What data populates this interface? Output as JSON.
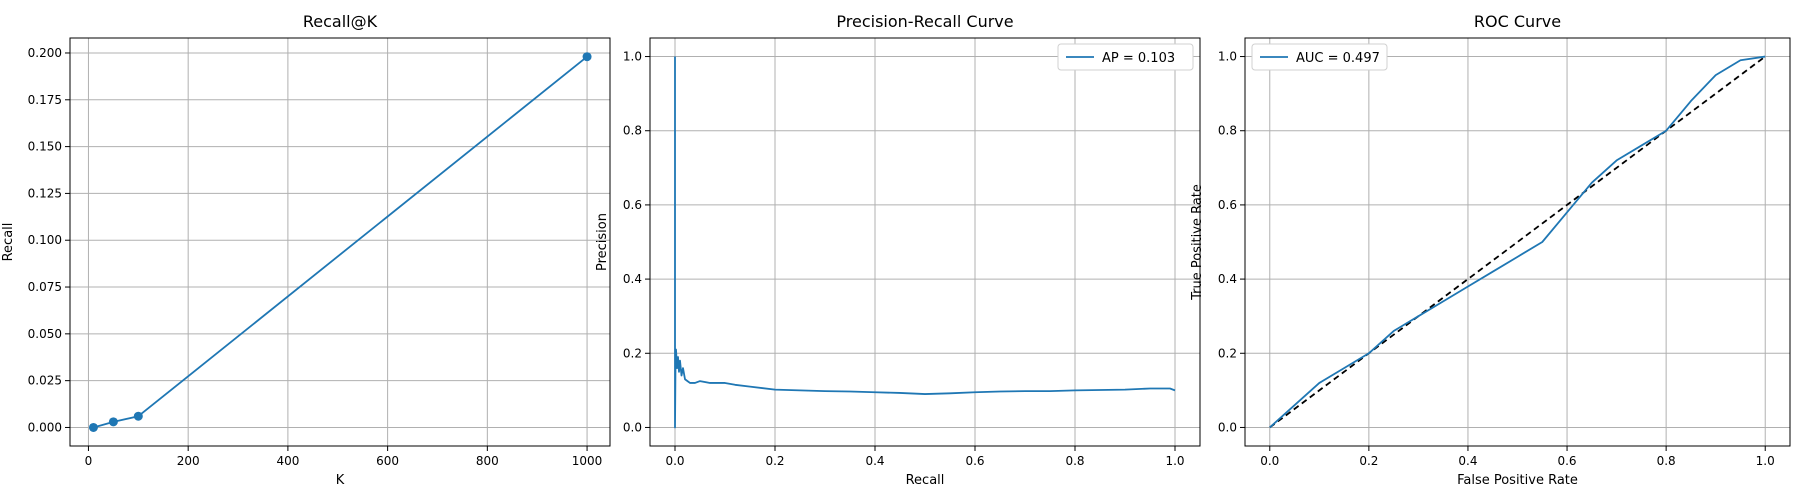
{
  "colors": {
    "series": "#1f77b4",
    "grid": "#b0b0b0",
    "diagonal": "#000000"
  },
  "chart_data": [
    {
      "type": "line",
      "title": "Recall@K",
      "xlabel": "K",
      "ylabel": "Recall",
      "xlim": [
        -37,
        1046
      ],
      "ylim": [
        -0.0099,
        0.208
      ],
      "xticks": [
        0,
        200,
        400,
        600,
        800,
        1000
      ],
      "xtick_labels": [
        "0",
        "200",
        "400",
        "600",
        "800",
        "1000"
      ],
      "yticks": [
        0,
        0.025,
        0.05,
        0.075,
        0.1,
        0.125,
        0.15,
        0.175,
        0.2
      ],
      "ytick_labels": [
        "0.000",
        "0.025",
        "0.050",
        "0.075",
        "0.100",
        "0.125",
        "0.150",
        "0.175",
        "0.200"
      ],
      "grid": true,
      "markers": true,
      "series": [
        {
          "x": [
            10,
            50,
            100,
            1000
          ],
          "y": [
            0.0,
            0.003,
            0.006,
            0.198
          ]
        }
      ]
    },
    {
      "type": "line",
      "title": "Precision-Recall Curve",
      "xlabel": "Recall",
      "ylabel": "Precision",
      "xlim": [
        -0.05,
        1.05
      ],
      "ylim": [
        -0.05,
        1.05
      ],
      "xticks": [
        0,
        0.2,
        0.4,
        0.6,
        0.8,
        1.0
      ],
      "xtick_labels": [
        "0.0",
        "0.2",
        "0.4",
        "0.6",
        "0.8",
        "1.0"
      ],
      "yticks": [
        0,
        0.2,
        0.4,
        0.6,
        0.8,
        1.0
      ],
      "ytick_labels": [
        "0.0",
        "0.2",
        "0.4",
        "0.6",
        "0.8",
        "1.0"
      ],
      "grid": true,
      "legend_position": "top-right",
      "series": [
        {
          "name": "AP = 0.103",
          "x": [
            0.0,
            0.0,
            0.001,
            0.002,
            0.004,
            0.006,
            0.008,
            0.01,
            0.013,
            0.016,
            0.02,
            0.025,
            0.03,
            0.04,
            0.05,
            0.07,
            0.1,
            0.12,
            0.15,
            0.2,
            0.25,
            0.3,
            0.35,
            0.4,
            0.45,
            0.5,
            0.55,
            0.6,
            0.65,
            0.7,
            0.75,
            0.8,
            0.85,
            0.9,
            0.95,
            0.99,
            1.0
          ],
          "y": [
            1.0,
            0.0,
            0.17,
            0.21,
            0.16,
            0.19,
            0.15,
            0.18,
            0.14,
            0.16,
            0.13,
            0.125,
            0.12,
            0.12,
            0.125,
            0.12,
            0.12,
            0.115,
            0.11,
            0.102,
            0.1,
            0.098,
            0.097,
            0.095,
            0.093,
            0.09,
            0.092,
            0.095,
            0.097,
            0.098,
            0.098,
            0.1,
            0.101,
            0.102,
            0.105,
            0.105,
            0.1
          ]
        }
      ]
    },
    {
      "type": "line",
      "title": "ROC Curve",
      "xlabel": "False Positive Rate",
      "ylabel": "True Positive Rate",
      "xlim": [
        -0.05,
        1.05
      ],
      "ylim": [
        -0.05,
        1.05
      ],
      "xticks": [
        0,
        0.2,
        0.4,
        0.6,
        0.8,
        1.0
      ],
      "xtick_labels": [
        "0.0",
        "0.2",
        "0.4",
        "0.6",
        "0.8",
        "1.0"
      ],
      "yticks": [
        0,
        0.2,
        0.4,
        0.6,
        0.8,
        1.0
      ],
      "ytick_labels": [
        "0.0",
        "0.2",
        "0.4",
        "0.6",
        "0.8",
        "1.0"
      ],
      "grid": true,
      "legend_position": "top-left",
      "series": [
        {
          "name": "AUC = 0.497",
          "x": [
            0.0,
            0.05,
            0.1,
            0.15,
            0.2,
            0.25,
            0.3,
            0.35,
            0.4,
            0.45,
            0.5,
            0.55,
            0.6,
            0.65,
            0.7,
            0.75,
            0.8,
            0.85,
            0.9,
            0.95,
            1.0
          ],
          "y": [
            0.0,
            0.06,
            0.12,
            0.16,
            0.2,
            0.26,
            0.3,
            0.34,
            0.38,
            0.42,
            0.46,
            0.5,
            0.58,
            0.66,
            0.72,
            0.76,
            0.8,
            0.88,
            0.95,
            0.99,
            1.0
          ]
        }
      ],
      "reference_line": {
        "x": [
          0,
          1
        ],
        "y": [
          0,
          1
        ],
        "style": "dashed"
      }
    }
  ]
}
